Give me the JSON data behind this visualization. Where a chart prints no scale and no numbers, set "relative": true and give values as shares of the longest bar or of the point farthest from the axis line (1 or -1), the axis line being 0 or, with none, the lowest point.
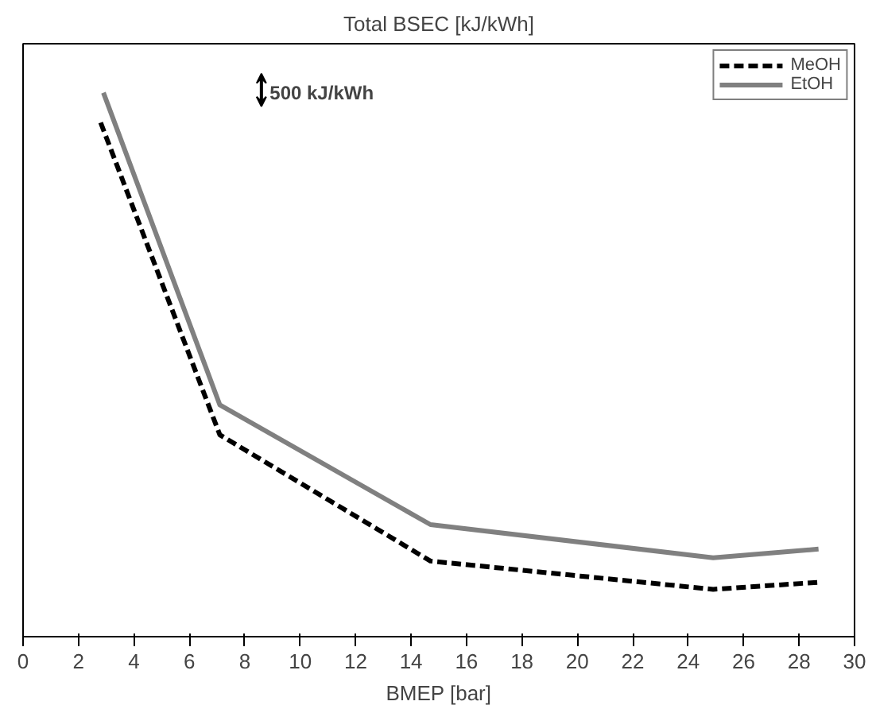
{
  "chart_data": {
    "type": "line",
    "title": "Total BSEC [kJ/kWh]",
    "xlabel": "BMEP [bar]",
    "relative": true,
    "xlim": [
      0,
      30
    ],
    "xticks": [
      0,
      2,
      4,
      6,
      8,
      10,
      12,
      14,
      16,
      18,
      20,
      22,
      24,
      26,
      28,
      30
    ],
    "grid": false,
    "legend": "top right",
    "marker": "none",
    "annotations": [
      "500 kJ/kWh"
    ],
    "series": [
      {
        "name": "MeOH",
        "color": "#000000",
        "line_style": "dashed",
        "x": [
          2.8,
          7.1,
          14.7,
          24.9,
          28.7
        ],
        "values": [
          0.945,
          0.371,
          0.139,
          0.087,
          0.1
        ]
      },
      {
        "name": "EtOH",
        "color": "#808080",
        "line_style": "solid",
        "x": [
          2.9,
          7.1,
          14.7,
          24.9,
          28.7
        ],
        "values": [
          1,
          0.426,
          0.206,
          0.145,
          0.161
        ]
      }
    ]
  }
}
